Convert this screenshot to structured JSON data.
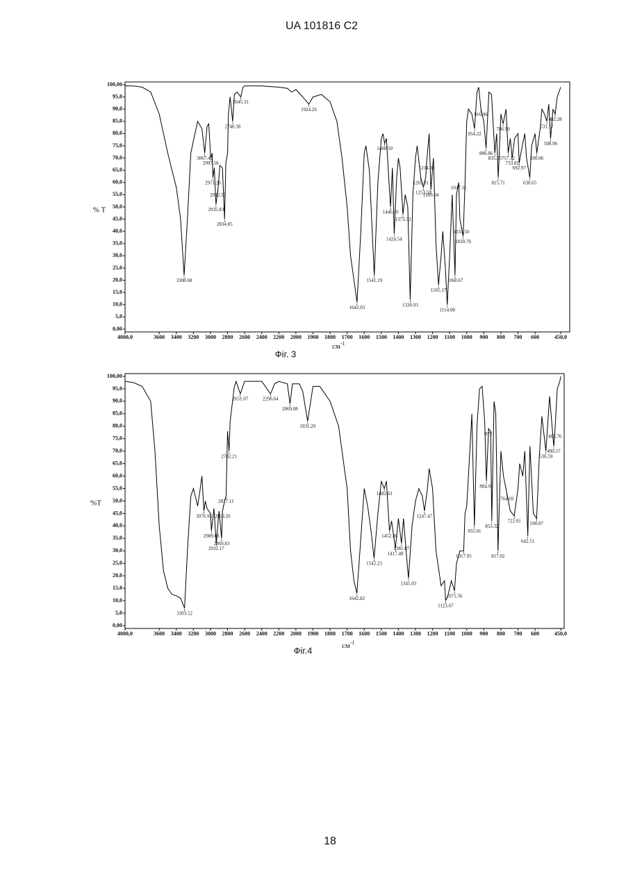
{
  "header": "UA 101816 C2",
  "page_number": "18",
  "chart_data": [
    {
      "type": "line",
      "caption": "Фіг. 3",
      "x_label": "см",
      "x_label_sup": "-1",
      "y_label": "% T",
      "color": "#000000",
      "xlim": [
        4000,
        450
      ],
      "ylim": [
        0,
        100
      ],
      "xticks": [
        {
          "value": 4000,
          "label": "4000,0"
        },
        3600,
        3400,
        3200,
        3000,
        2800,
        2600,
        2400,
        2200,
        2000,
        1900,
        1800,
        1700,
        1600,
        1500,
        1400,
        1300,
        1200,
        1100,
        1000,
        900,
        800,
        700,
        600,
        {
          "value": 450,
          "label": "450,0"
        }
      ],
      "yticks": [
        {
          "value": 0,
          "label": "0,00"
        },
        {
          "value": 5,
          "label": "5,0"
        },
        {
          "value": 10,
          "label": "10,0"
        },
        {
          "value": 15,
          "label": "15,0"
        },
        {
          "value": 20,
          "label": "20,0"
        },
        {
          "value": 25,
          "label": "25,0"
        },
        {
          "value": 30,
          "label": "30,0"
        },
        {
          "value": 35,
          "label": "35,0"
        },
        {
          "value": 40,
          "label": "40,0"
        },
        {
          "value": 45,
          "label": "45,0"
        },
        {
          "value": 50,
          "label": "50,0"
        },
        {
          "value": 55,
          "label": "55,0"
        },
        {
          "value": 60,
          "label": "60,0"
        },
        {
          "value": 65,
          "label": "65,0"
        },
        {
          "value": 70,
          "label": "70,0"
        },
        {
          "value": 75,
          "label": "75,0"
        },
        {
          "value": 80,
          "label": "80,0"
        },
        {
          "value": 85,
          "label": "85,0"
        },
        {
          "value": 90,
          "label": "90,0"
        },
        {
          "value": 95,
          "label": "95,0"
        },
        {
          "value": 100,
          "label": "100,00"
        }
      ],
      "x": [
        4000,
        3900,
        3800,
        3700,
        3600,
        3500,
        3450,
        3400,
        3350,
        3308.68,
        3270,
        3230,
        3200,
        3150,
        3100,
        3067.42,
        3040,
        3020,
        2997.56,
        2980,
        2971.26,
        2955,
        2935.83,
        2912.57,
        2890,
        2860,
        2834.85,
        2820,
        2800,
        2790,
        2770,
        2740.38,
        2720,
        2690,
        2645.31,
        2620,
        2600,
        2400,
        2200,
        2100,
        2050,
        2000,
        1960,
        1924.26,
        1900,
        1850,
        1800,
        1760,
        1730,
        1700,
        1680,
        1660,
        1642.03,
        1620,
        1600,
        1590,
        1570,
        1541.19,
        1520,
        1500,
        1490,
        1480.5,
        1470,
        1455,
        1446.1,
        1435,
        1424.54,
        1410,
        1400,
        1390,
        1373.33,
        1360,
        1345,
        1330.93,
        1315,
        1300,
        1290,
        1269.01,
        1253.59,
        1240,
        1234.98,
        1220,
        1209.84,
        1195,
        1180,
        1165.17,
        1150,
        1140,
        1125,
        1114.08,
        1100,
        1085,
        1068.67,
        1060,
        1047.11,
        1040,
        1031.5,
        1020.76,
        1010,
        1000,
        990,
        970,
        954.22,
        940,
        930,
        916.96,
        900,
        886.86,
        870,
        855,
        835.55,
        825,
        815.71,
        800,
        786.9,
        770,
        757.32,
        745,
        733.82,
        720,
        700,
        692.97,
        675,
        660,
        650,
        630.65,
        620,
        600,
        590.06,
        570,
        560,
        545,
        531.17,
        520,
        508.96,
        495,
        482.28,
        470,
        450
      ],
      "values": [
        99.5,
        99.5,
        99,
        97,
        88,
        72,
        65,
        58,
        45,
        22,
        45,
        72,
        77,
        85,
        82,
        72,
        83,
        84,
        70,
        72,
        62,
        66,
        51,
        57,
        67,
        66,
        45,
        68,
        72,
        88,
        95,
        85,
        96,
        97,
        95,
        99,
        99.5,
        99.5,
        99,
        98.5,
        97,
        98,
        95,
        92,
        95,
        96,
        93,
        85,
        70,
        50,
        30,
        20,
        11,
        40,
        72,
        75,
        65,
        22,
        60,
        78,
        80,
        76,
        78,
        60,
        50,
        66,
        39,
        62,
        70,
        66,
        47,
        55,
        50,
        12,
        55,
        70,
        75,
        62,
        58,
        62,
        68,
        80,
        57,
        70,
        35,
        18,
        30,
        40,
        25,
        10,
        30,
        55,
        22,
        55,
        60,
        45,
        42,
        38,
        60,
        85,
        90,
        88,
        82,
        97,
        99,
        90,
        85,
        74,
        97,
        96,
        72,
        80,
        62,
        88,
        84,
        90,
        72,
        78,
        70,
        78,
        80,
        68,
        75,
        80,
        70,
        62,
        75,
        80,
        72,
        82,
        90,
        88,
        85,
        92,
        78,
        90,
        88,
        95,
        99
      ],
      "peaks": [
        {
          "x": 3308.68,
          "y": 22,
          "label": "3308.68"
        },
        {
          "x": 3067.42,
          "y": 72,
          "label": "3067.42"
        },
        {
          "x": 2997.56,
          "y": 70,
          "label": "2997.56"
        },
        {
          "x": 2971.26,
          "y": 62,
          "label": "2971.26"
        },
        {
          "x": 2935.83,
          "y": 51,
          "label": "2935.83"
        },
        {
          "x": 2912.57,
          "y": 57,
          "label": "2912.57"
        },
        {
          "x": 2834.85,
          "y": 45,
          "label": "2834.85"
        },
        {
          "x": 2740.38,
          "y": 85,
          "label": "2740.38"
        },
        {
          "x": 2645.31,
          "y": 95,
          "label": "2645.31"
        },
        {
          "x": 1924.26,
          "y": 92,
          "label": "1924.26"
        },
        {
          "x": 1642.03,
          "y": 11,
          "label": "1642.03"
        },
        {
          "x": 1541.19,
          "y": 22,
          "label": "1541.19"
        },
        {
          "x": 1480.5,
          "y": 76,
          "label": "1480.50"
        },
        {
          "x": 1446.1,
          "y": 50,
          "label": "1446.10"
        },
        {
          "x": 1424.54,
          "y": 39,
          "label": "1424.54"
        },
        {
          "x": 1373.33,
          "y": 47,
          "label": "1373.33"
        },
        {
          "x": 1330.93,
          "y": 12,
          "label": "1330.93"
        },
        {
          "x": 1269.01,
          "y": 62,
          "label": "1269.01"
        },
        {
          "x": 1253.59,
          "y": 58,
          "label": "1253.59"
        },
        {
          "x": 1234.98,
          "y": 68,
          "label": "1234.98"
        },
        {
          "x": 1209.84,
          "y": 57,
          "label": "1209.84"
        },
        {
          "x": 1165.17,
          "y": 18,
          "label": "1165.17"
        },
        {
          "x": 1114.08,
          "y": 10,
          "label": "1114.08"
        },
        {
          "x": 1068.67,
          "y": 22,
          "label": "1068.67"
        },
        {
          "x": 1047.11,
          "y": 60,
          "label": "1047.11"
        },
        {
          "x": 1031.5,
          "y": 42,
          "label": "1031.50"
        },
        {
          "x": 1020.76,
          "y": 38,
          "label": "1020.76"
        },
        {
          "x": 954.22,
          "y": 82,
          "label": "954.22"
        },
        {
          "x": 916.96,
          "y": 90,
          "label": "916.96"
        },
        {
          "x": 886.86,
          "y": 74,
          "label": "886.86"
        },
        {
          "x": 835.55,
          "y": 72,
          "label": "835.55"
        },
        {
          "x": 815.71,
          "y": 62,
          "label": "815.71"
        },
        {
          "x": 786.9,
          "y": 84,
          "label": "786.90"
        },
        {
          "x": 757.32,
          "y": 72,
          "label": "757.32"
        },
        {
          "x": 733.82,
          "y": 70,
          "label": "733.82"
        },
        {
          "x": 692.97,
          "y": 68,
          "label": "692.97"
        },
        {
          "x": 630.65,
          "y": 62,
          "label": "630.65"
        },
        {
          "x": 590.06,
          "y": 72,
          "label": "590.06"
        },
        {
          "x": 531.17,
          "y": 85,
          "label": "531.17"
        },
        {
          "x": 508.96,
          "y": 78,
          "label": "508.96"
        },
        {
          "x": 482.28,
          "y": 88,
          "label": "482.28"
        }
      ]
    },
    {
      "type": "line",
      "caption": "Фіг.4",
      "x_label": "см",
      "x_label_sup": "-1",
      "y_label": "%T",
      "color": "#000000",
      "xlim": [
        4000,
        450
      ],
      "ylim": [
        0,
        100
      ],
      "xticks": [
        {
          "value": 4000,
          "label": "4000,0"
        },
        3600,
        3400,
        3200,
        3000,
        2800,
        2600,
        2400,
        2200,
        2000,
        1900,
        1800,
        1700,
        1600,
        1500,
        1400,
        1300,
        1200,
        1100,
        1000,
        900,
        800,
        700,
        600,
        {
          "value": 450,
          "label": "450,0"
        }
      ],
      "yticks": [
        {
          "value": 0,
          "label": "0,00"
        },
        {
          "value": 5,
          "label": "5,0"
        },
        {
          "value": 10,
          "label": "10,0"
        },
        {
          "value": 15,
          "label": "15,0"
        },
        {
          "value": 20,
          "label": "20,0"
        },
        {
          "value": 25,
          "label": "25,0"
        },
        {
          "value": 30,
          "label": "30,0"
        },
        {
          "value": 35,
          "label": "35,0"
        },
        {
          "value": 40,
          "label": "40,0"
        },
        {
          "value": 45,
          "label": "45,0"
        },
        {
          "value": 50,
          "label": "50,0"
        },
        {
          "value": 55,
          "label": "55,0"
        },
        {
          "value": 60,
          "label": "60,0"
        },
        {
          "value": 65,
          "label": "65,0"
        },
        {
          "value": 70,
          "label": "70,0"
        },
        {
          "value": 75,
          "label": "75,0"
        },
        {
          "value": 80,
          "label": "80,0"
        },
        {
          "value": 85,
          "label": "85,0"
        },
        {
          "value": 90,
          "label": "90,0"
        },
        {
          "value": 95,
          "label": "95,0"
        },
        {
          "value": 100,
          "label": "100,00"
        }
      ],
      "x": [
        4000,
        3900,
        3800,
        3700,
        3650,
        3600,
        3550,
        3500,
        3450,
        3400,
        3350,
        3303.52,
        3270,
        3230,
        3200,
        3150,
        3120,
        3100,
        3076.93,
        3060,
        3040,
        3000,
        2989.03,
        2960,
        2932.17,
        2900,
        2869.83,
        2859.2,
        2835,
        2817.11,
        2800,
        2782.21,
        2770,
        2720,
        2700,
        2651.07,
        2600,
        2400,
        2296.64,
        2250,
        2200,
        2100,
        2069.08,
        2040,
        1980,
        1960,
        1931.29,
        1900,
        1860,
        1800,
        1750,
        1700,
        1680,
        1660,
        1642.82,
        1620,
        1600,
        1580,
        1560,
        1542.23,
        1520,
        1500,
        1482.63,
        1470,
        1452.36,
        1440,
        1417.48,
        1400,
        1381.87,
        1370,
        1355,
        1341.03,
        1320,
        1300,
        1280,
        1260,
        1247.47,
        1230,
        1220,
        1200,
        1180,
        1150,
        1130,
        1123.67,
        1110,
        1090,
        1071.56,
        1060,
        1040,
        1017.95,
        1010,
        1000,
        990,
        970,
        955.01,
        940,
        925,
        910,
        895,
        884.93,
        872,
        860,
        853.32,
        840,
        830,
        817.02,
        800,
        785,
        764.69,
        745,
        722.01,
        700,
        690,
        672,
        660,
        642.51,
        630,
        610,
        590.87,
        575,
        560,
        536.59,
        515,
        490.57,
        483.76,
        470,
        455,
        450
      ],
      "values": [
        98,
        97.5,
        96,
        90,
        70,
        40,
        22,
        15,
        12.5,
        12,
        11,
        7,
        30,
        52,
        55,
        48,
        55,
        60,
        46,
        50,
        47,
        45,
        38,
        47,
        33,
        46,
        35,
        46,
        50,
        52,
        78,
        70,
        82,
        96,
        98,
        93,
        98,
        98,
        93,
        97,
        98,
        97,
        89,
        97,
        97,
        94,
        82,
        96,
        96,
        90,
        80,
        55,
        30,
        18,
        13,
        35,
        55,
        48,
        38,
        27,
        45,
        58,
        55,
        58,
        38,
        42,
        31,
        43,
        33,
        43,
        30,
        19,
        40,
        50,
        55,
        52,
        46,
        55,
        63,
        55,
        30,
        16,
        18,
        10,
        12,
        18,
        14,
        25,
        30,
        30,
        45,
        48,
        60,
        85,
        40,
        80,
        95,
        96,
        82,
        58,
        79,
        78,
        42,
        90,
        85,
        30,
        70,
        60,
        53,
        46,
        44,
        55,
        65,
        60,
        70,
        36,
        72,
        45,
        43,
        68,
        84,
        70,
        92,
        72,
        78,
        95,
        98,
        100
      ],
      "peaks": [
        {
          "x": 3303.52,
          "y": 7,
          "label": "3303.52"
        },
        {
          "x": 3076.93,
          "y": 46,
          "label": "3076.93"
        },
        {
          "x": 2989.03,
          "y": 38,
          "label": "2989.03"
        },
        {
          "x": 2932.17,
          "y": 33,
          "label": "2932.17"
        },
        {
          "x": 2869.83,
          "y": 35,
          "label": "2869.83"
        },
        {
          "x": 2859.2,
          "y": 46,
          "label": "2859.20"
        },
        {
          "x": 2817.11,
          "y": 52,
          "label": "2817.11"
        },
        {
          "x": 2782.21,
          "y": 70,
          "label": "2782.21"
        },
        {
          "x": 2651.07,
          "y": 93,
          "label": "2651.07"
        },
        {
          "x": 2296.64,
          "y": 93,
          "label": "2296.64"
        },
        {
          "x": 2069.08,
          "y": 89,
          "label": "2069.08"
        },
        {
          "x": 1931.29,
          "y": 82,
          "label": "1931.29"
        },
        {
          "x": 1642.82,
          "y": 13,
          "label": "1642.82"
        },
        {
          "x": 1542.23,
          "y": 27,
          "label": "1542.23"
        },
        {
          "x": 1482.63,
          "y": 55,
          "label": "1482.63"
        },
        {
          "x": 1452.36,
          "y": 38,
          "label": "1452.36"
        },
        {
          "x": 1417.48,
          "y": 31,
          "label": "1417.48"
        },
        {
          "x": 1381.87,
          "y": 33,
          "label": "1381.87"
        },
        {
          "x": 1341.03,
          "y": 19,
          "label": "1341.03"
        },
        {
          "x": 1247.47,
          "y": 46,
          "label": "1247.47"
        },
        {
          "x": 1123.67,
          "y": 10,
          "label": "1123.67"
        },
        {
          "x": 1071.56,
          "y": 14,
          "label": "1071.56"
        },
        {
          "x": 1017.95,
          "y": 30,
          "label": "1017.95"
        },
        {
          "x": 955.01,
          "y": 40,
          "label": "955.01"
        },
        {
          "x": 884.93,
          "y": 58,
          "label": "884.93"
        },
        {
          "x": 872,
          "y": 79,
          "label": "872"
        },
        {
          "x": 853.32,
          "y": 42,
          "label": "853.32"
        },
        {
          "x": 817.02,
          "y": 30,
          "label": "817.02"
        },
        {
          "x": 764.69,
          "y": 53,
          "label": "764.69"
        },
        {
          "x": 722.01,
          "y": 44,
          "label": "722.01"
        },
        {
          "x": 642.51,
          "y": 36,
          "label": "642.51"
        },
        {
          "x": 590.87,
          "y": 43,
          "label": "590.87"
        },
        {
          "x": 536.59,
          "y": 70,
          "label": "536.59"
        },
        {
          "x": 490.57,
          "y": 72,
          "label": "490.57"
        },
        {
          "x": 483.76,
          "y": 78,
          "label": "483.76"
        }
      ]
    }
  ]
}
